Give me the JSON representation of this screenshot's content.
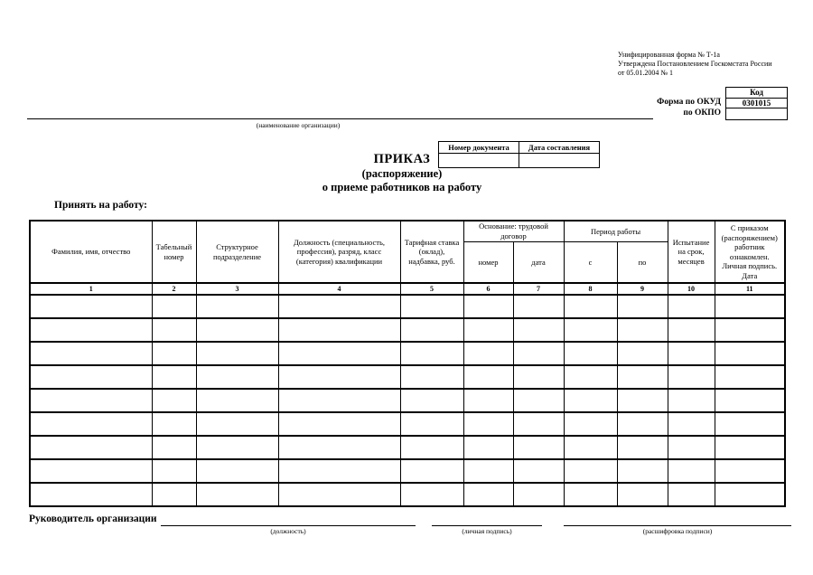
{
  "page": {
    "background": "#ffffff",
    "text_color": "#000000"
  },
  "form_meta": {
    "line1": "Унифицированная форма № Т-1а",
    "line2": "Утверждена Постановлением Госкомстата России",
    "line3": "от 05.01.2004 № 1"
  },
  "code_box": {
    "header": "Код",
    "okud_label": "Форма по ОКУД",
    "okud_value": "0301015",
    "okpo_label": "по ОКПО",
    "okpo_value": ""
  },
  "org": {
    "caption": "(наименование организации)"
  },
  "doc_box": {
    "number_header": "Номер документа",
    "date_header": "Дата составления",
    "number_value": "",
    "date_value": ""
  },
  "title": {
    "line1": "ПРИКАЗ",
    "line2": "(распоряжение)",
    "line3": "о приеме работников на работу"
  },
  "section_label": "Принять на работу:",
  "table": {
    "headers": [
      "Фамилия, имя, отчество",
      "Табельный номер",
      "Структурное подразделение",
      "Должность (специальность, профессия), разряд, класс (категория) квалификации",
      "Тарифная ставка (оклад), надбавка, руб.",
      "номер",
      "дата",
      "с",
      "по",
      "Испытание на срок, месяцев",
      "С приказом (распоряжением) работник ознакомлен. Личная подпись. Дата"
    ],
    "groups": {
      "osnovanie": "Основание: трудовой договор",
      "period": "Период работы"
    },
    "column_numbers": [
      "1",
      "2",
      "3",
      "4",
      "5",
      "6",
      "7",
      "8",
      "9",
      "10",
      "11"
    ],
    "empty_row_count": 9
  },
  "footer": {
    "leader_label": "Руководитель организации",
    "caption_position": "(должность)",
    "caption_signature": "(личная подпись)",
    "caption_decryption": "(расшифровка подписи)"
  }
}
